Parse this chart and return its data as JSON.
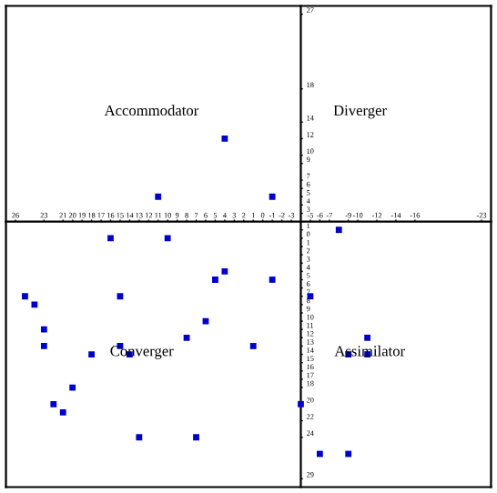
{
  "chart_data": {
    "type": "scatter",
    "color": "#0000cc",
    "marker": "square",
    "grid": false,
    "x": [
      4,
      11,
      16,
      10,
      -1,
      -8,
      4,
      5,
      25,
      24,
      15,
      23,
      6,
      8,
      23,
      15,
      18,
      14,
      20,
      22,
      21,
      13,
      7,
      -1,
      -5,
      -11,
      1,
      -9,
      -11,
      -4,
      -6,
      -9
    ],
    "values": [
      12,
      5,
      0,
      0,
      5,
      1,
      -4,
      -5,
      -7,
      -8,
      -7,
      -11,
      -10,
      -12,
      -13,
      -13,
      -14,
      -14,
      -18,
      -20,
      -21,
      -24,
      -24,
      -5,
      -7,
      -12,
      -13,
      -14,
      -14,
      -20,
      -26,
      -26
    ],
    "xlim": [
      27,
      -24
    ],
    "xticks": [
      26,
      23,
      21,
      20,
      19,
      18,
      17,
      16,
      15,
      14,
      13,
      12,
      11,
      10,
      9,
      8,
      7,
      6,
      5,
      4,
      3,
      2,
      1,
      0,
      -1,
      -2,
      -3,
      -5,
      -6,
      -7,
      -9,
      -10,
      -12,
      -14,
      -16,
      -23
    ],
    "ylim": [
      -30,
      28
    ],
    "yticks": [
      27,
      18,
      14,
      12,
      10,
      9,
      7,
      6,
      5,
      4,
      3,
      1,
      0,
      {
        "value": -1,
        "label": "1"
      },
      {
        "value": -2,
        "label": "2"
      },
      {
        "value": -3,
        "label": "3"
      },
      {
        "value": -4,
        "label": "4"
      },
      {
        "value": -5,
        "label": "5"
      },
      {
        "value": -6,
        "label": "6"
      },
      {
        "value": -7,
        "label": "7"
      },
      {
        "value": -8,
        "label": "8"
      },
      {
        "value": -9,
        "label": "9"
      },
      {
        "value": -10,
        "label": "10"
      },
      {
        "value": -11,
        "label": "11"
      },
      {
        "value": -12,
        "label": "12"
      },
      {
        "value": -13,
        "label": "13"
      },
      {
        "value": -14,
        "label": "14"
      },
      {
        "value": -15,
        "label": "15"
      },
      {
        "value": -16,
        "label": "16"
      },
      {
        "value": -17,
        "label": "17"
      },
      {
        "value": -18,
        "label": "18"
      },
      {
        "value": -20,
        "label": "20"
      },
      {
        "value": -22,
        "label": "22"
      },
      {
        "value": -24,
        "label": "24"
      },
      {
        "value": -29,
        "label": "29"
      }
    ],
    "annotations": [
      "Accommodator",
      "Diverger",
      "Converger",
      "Assimilator"
    ]
  }
}
